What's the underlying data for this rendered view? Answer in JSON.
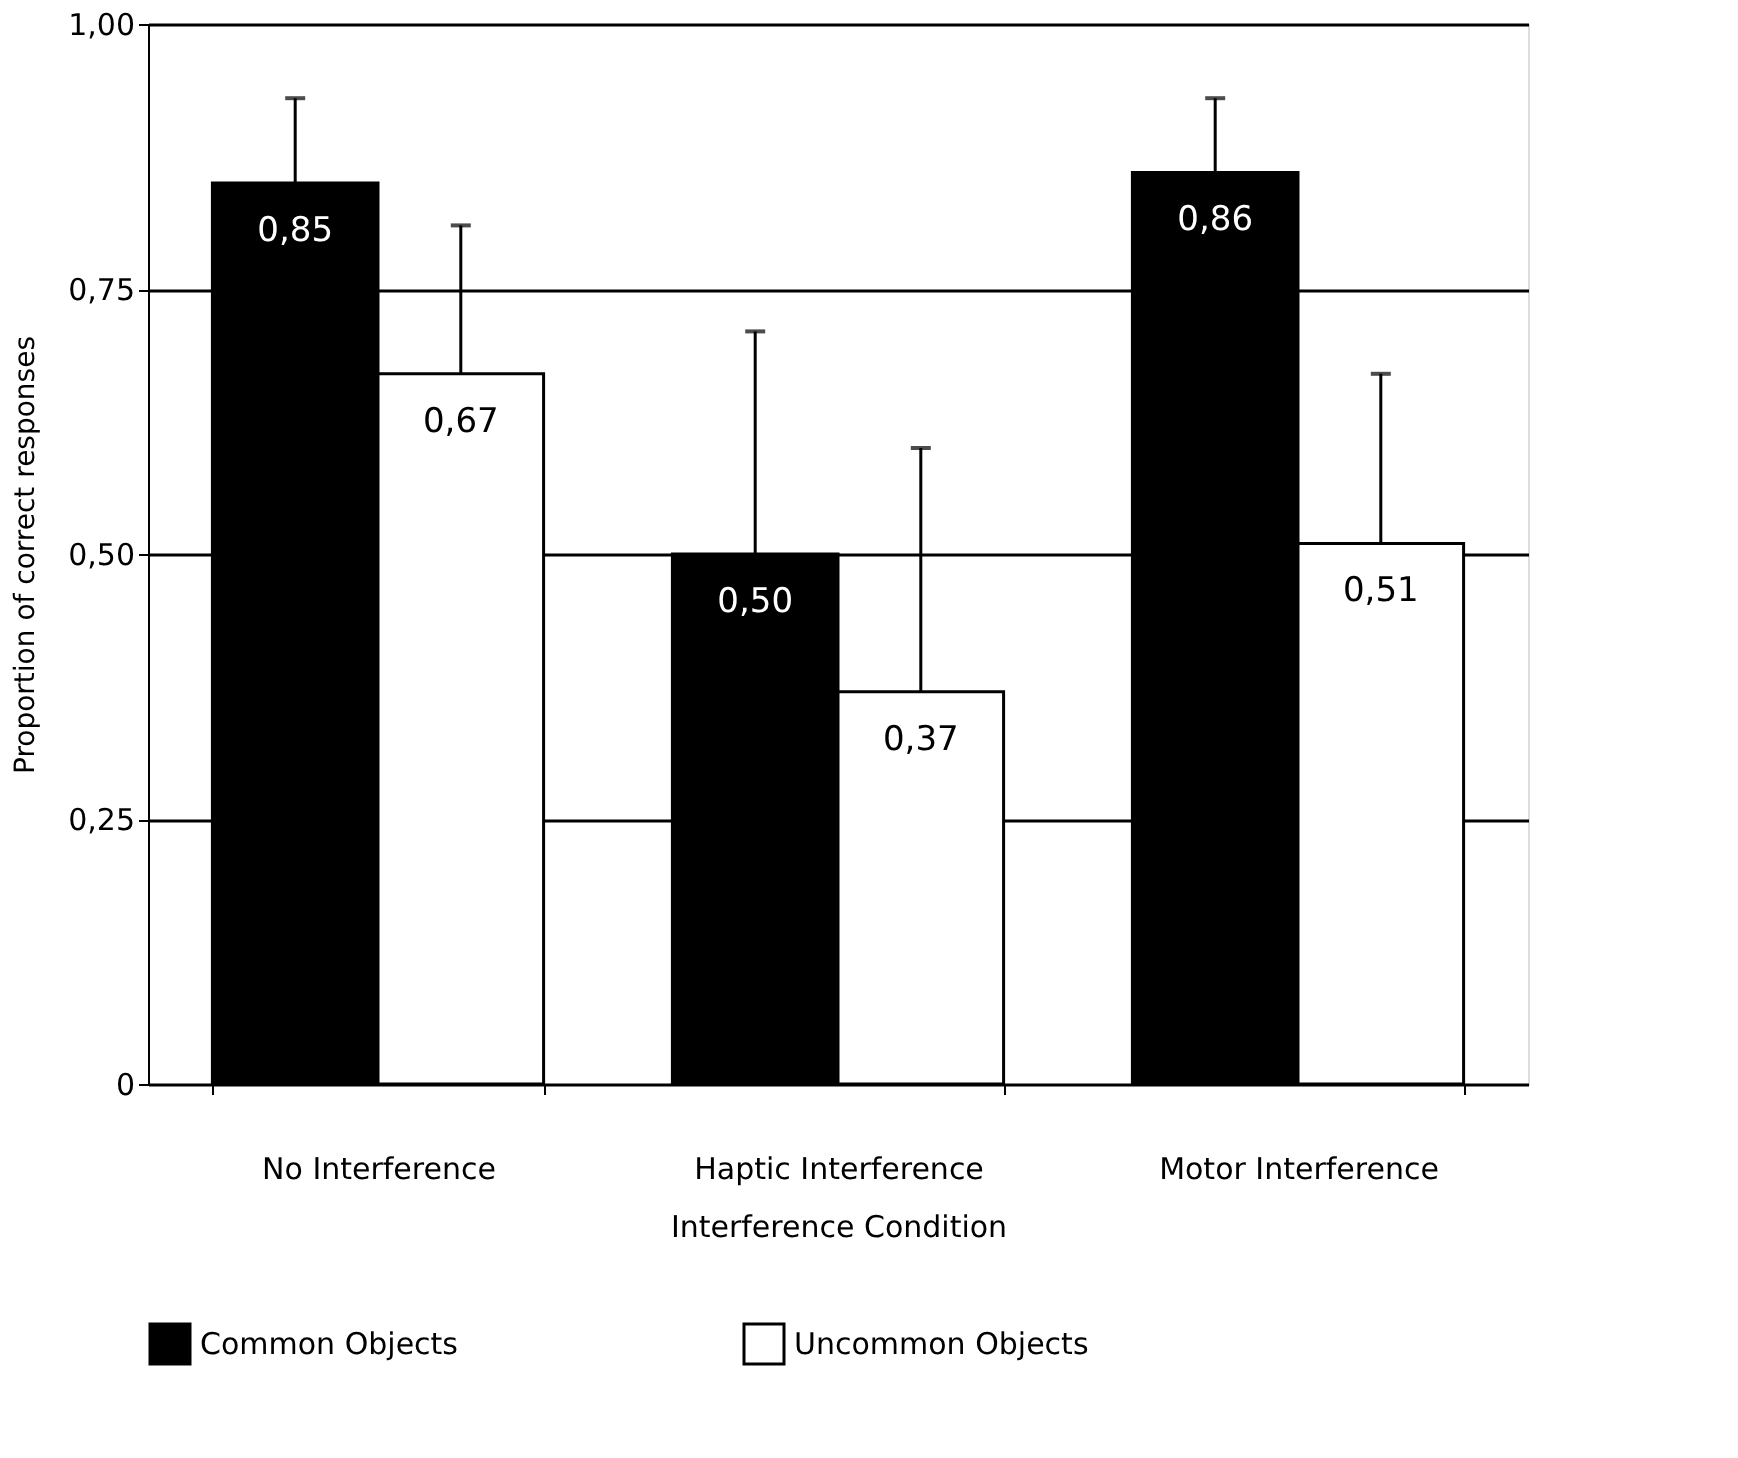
{
  "chart_data": {
    "type": "bar",
    "xlabel": "Interference Condition",
    "ylabel": "Proportion of correct responses",
    "categories": [
      "No Interference",
      "Haptic Interference",
      "Motor Interference"
    ],
    "series": [
      {
        "name": "Common Objects",
        "color": "#000000",
        "values": [
          0.85,
          0.5,
          0.86
        ],
        "value_labels": [
          "0,85",
          "0,50",
          "0,86"
        ],
        "errors": [
          [
            0.85,
            0.93
          ],
          [
            0.5,
            0.71
          ],
          [
            0.86,
            0.93
          ]
        ]
      },
      {
        "name": "Uncommon Objects",
        "color": "#ffffff",
        "values": [
          0.67,
          0.37,
          0.51
        ],
        "value_labels": [
          "0,67",
          "0,37",
          "0,51"
        ],
        "errors": [
          [
            0.67,
            0.81
          ],
          [
            0.37,
            0.6
          ],
          [
            0.51,
            0.67
          ]
        ]
      }
    ],
    "ylim": [
      0,
      1
    ],
    "yticks": [
      {
        "value": 0,
        "label": "0"
      },
      {
        "value": 0.25,
        "label": "0,25"
      },
      {
        "value": 0.5,
        "label": "0,50"
      },
      {
        "value": 0.75,
        "label": "0,75"
      },
      {
        "value": 1,
        "label": "1,00"
      }
    ],
    "grid": "y",
    "legend": "bottom"
  }
}
